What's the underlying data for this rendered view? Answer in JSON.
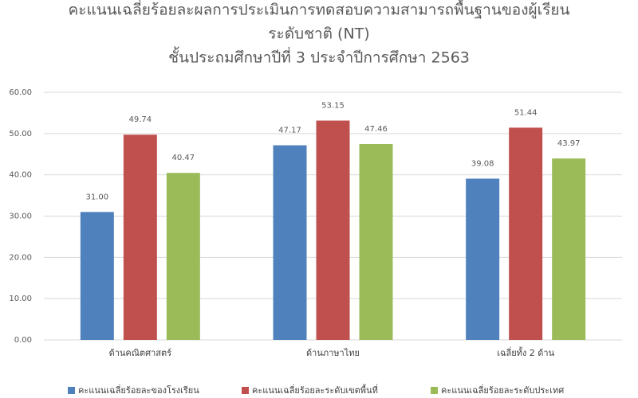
{
  "chart_data": {
    "type": "bar",
    "title": [
      "คะแนนเฉลี่ยร้อยละผลการประเมินการทดสอบความสามารถพื้นฐานของผู้เรียน",
      "ระดับชาติ (NT)",
      "ชั้นประถมศึกษาปีที่ 3 ประจำปีการศึกษา 2563"
    ],
    "categories": [
      "ด้านคณิตศาสตร์",
      "ด้านภาษาไทย",
      "เฉลี่ยทั้ง 2 ด้าน"
    ],
    "series": [
      {
        "name": "คะแนนเฉลี่ยร้อยละของโรงเรียน",
        "color": "#4f81bd",
        "values": [
          31.0,
          47.17,
          39.08
        ],
        "value_labels": [
          "31.00",
          "47.17",
          "39.08"
        ]
      },
      {
        "name": "คะแนนเฉลี่ยร้อยละระดับเขตพื้นที่",
        "color": "#c0504d",
        "values": [
          49.74,
          53.15,
          51.44
        ],
        "value_labels": [
          "49.74",
          "53.15",
          "51.44"
        ]
      },
      {
        "name": "คะแนนเฉลี่ยร้อยละระดับประเทศ",
        "color": "#9bbb59",
        "values": [
          40.47,
          47.46,
          43.97
        ],
        "value_labels": [
          "40.47",
          "47.46",
          "43.97"
        ]
      }
    ],
    "ylim": [
      0,
      60
    ],
    "yticks": [
      {
        "value": 0,
        "label": "0.00"
      },
      {
        "value": 10,
        "label": "10.00"
      },
      {
        "value": 20,
        "label": "20.00"
      },
      {
        "value": 30,
        "label": "30.00"
      },
      {
        "value": 40,
        "label": "40.00"
      },
      {
        "value": 50,
        "label": "50.00"
      },
      {
        "value": 60,
        "label": "60.00"
      }
    ],
    "grid": true,
    "legend": "bottom"
  }
}
